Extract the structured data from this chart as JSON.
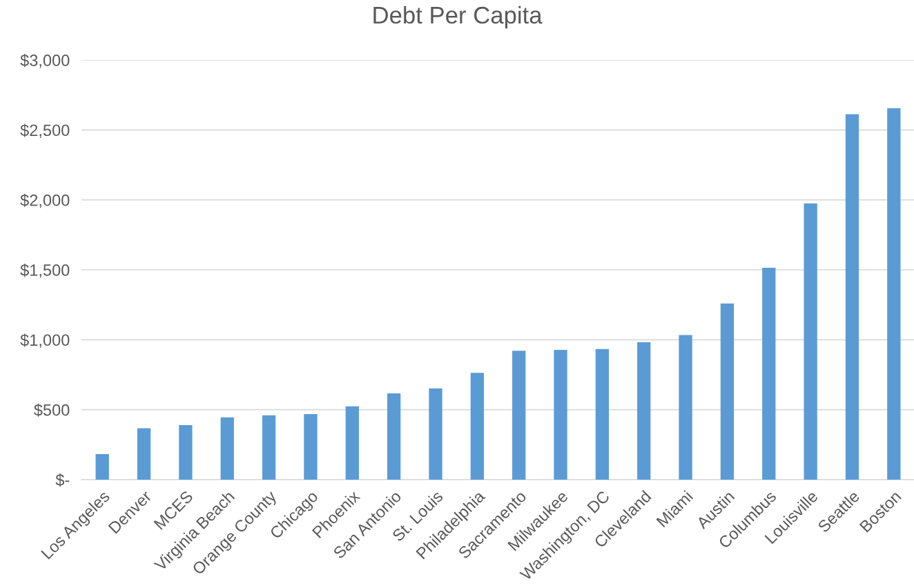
{
  "chart_data": {
    "type": "bar",
    "title": "Debt Per Capita",
    "categories": [
      "Los Angeles",
      "Denver",
      "MCES",
      "Virginia Beach",
      "Orange County",
      "Chicago",
      "Phoenix",
      "San Antonio",
      "St. Louis",
      "Philadelphia",
      "Sacramento",
      "Milwaukee",
      "Washington, DC",
      "Cleveland",
      "Miami",
      "Austin",
      "Columbus",
      "Louisville",
      "Seattle",
      "Boston"
    ],
    "values": [
      183,
      367,
      390,
      445,
      460,
      469,
      524,
      617,
      652,
      764,
      921,
      928,
      934,
      983,
      1034,
      1260,
      1515,
      1975,
      2613,
      2656
    ],
    "color": "#5b9bd5",
    "ylim": [
      0,
      3000
    ],
    "yticks": [
      {
        "value": 0,
        "label": "$-"
      },
      {
        "value": 500,
        "label": "$500"
      },
      {
        "value": 1000,
        "label": "$1,000"
      },
      {
        "value": 1500,
        "label": "$1,500"
      },
      {
        "value": 2000,
        "label": "$2,000"
      },
      {
        "value": 2500,
        "label": "$2,500"
      },
      {
        "value": 3000,
        "label": "$3,000"
      }
    ],
    "grid": "y"
  }
}
